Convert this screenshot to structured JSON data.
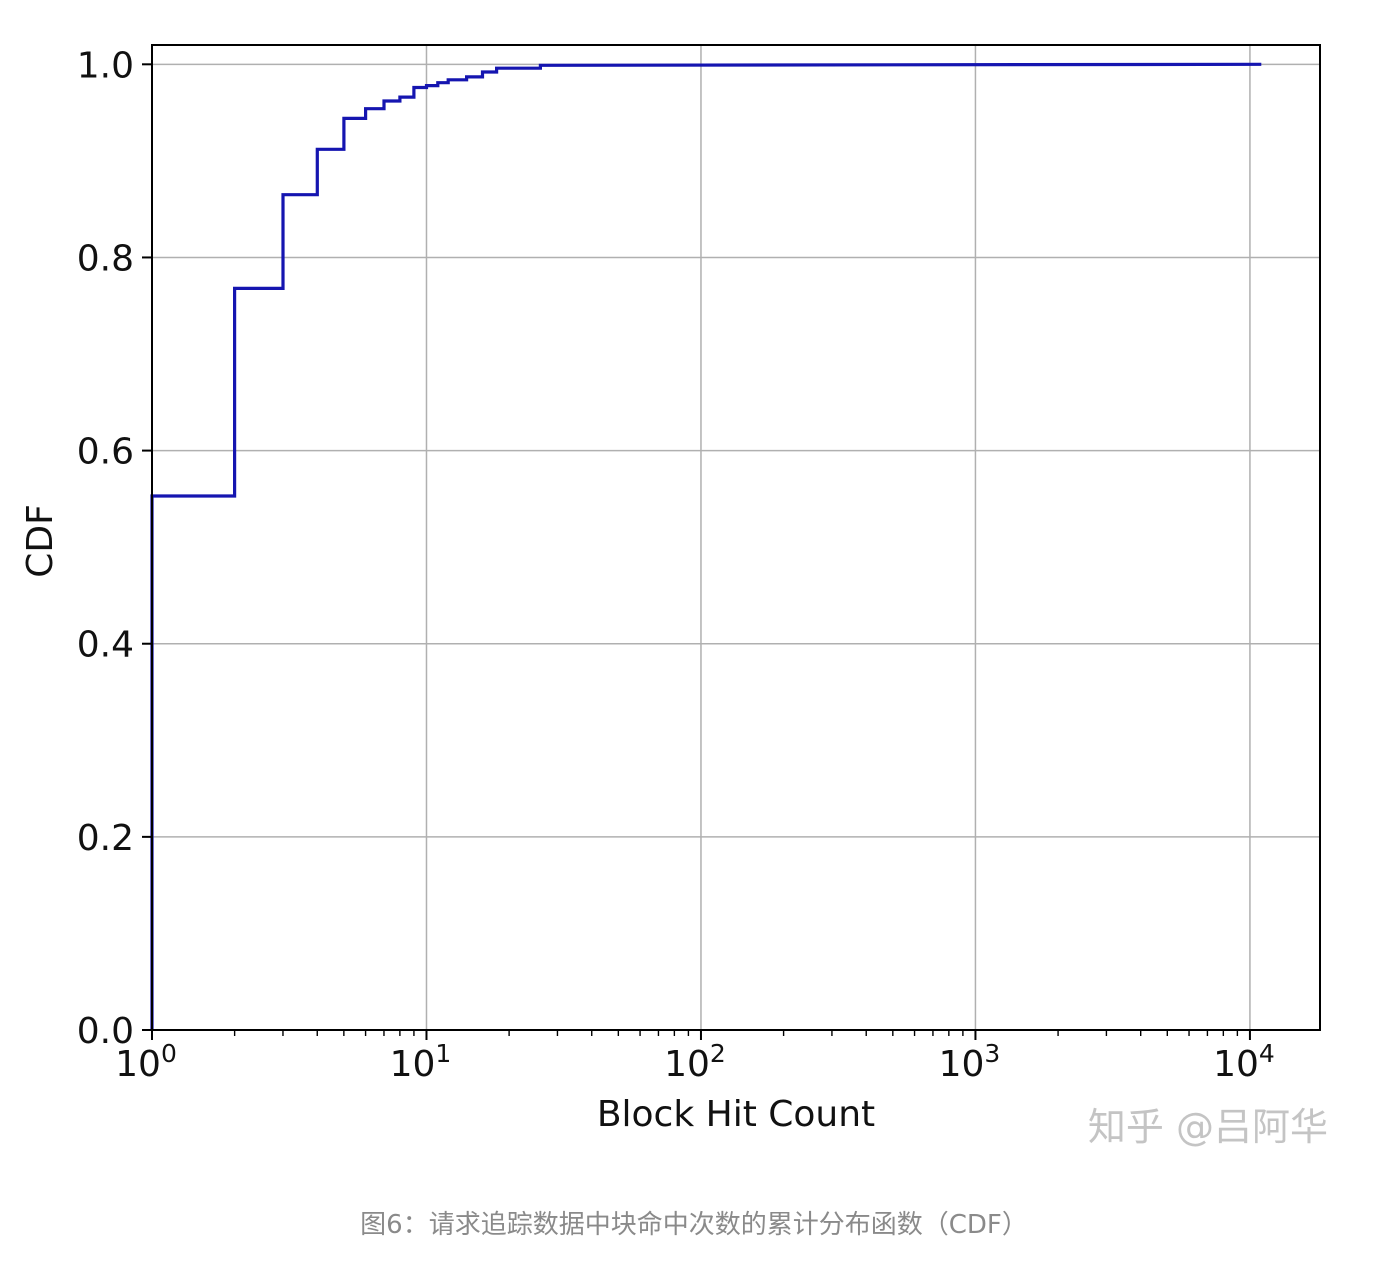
{
  "chart_data": {
    "type": "line",
    "step": true,
    "xscale": "log",
    "xlabel": "Block Hit Count",
    "ylabel": "CDF",
    "xlim": [
      1,
      18000
    ],
    "ylim": [
      0,
      1.02
    ],
    "grid": true,
    "line_color": "#1515b0",
    "xticks": [
      {
        "value": 1,
        "label": "10",
        "exp": "0"
      },
      {
        "value": 10,
        "label": "10",
        "exp": "1"
      },
      {
        "value": 100,
        "label": "10",
        "exp": "2"
      },
      {
        "value": 1000,
        "label": "10",
        "exp": "3"
      },
      {
        "value": 10000,
        "label": "10",
        "exp": "4"
      }
    ],
    "yticks": [
      {
        "value": 0.0,
        "label": "0.0"
      },
      {
        "value": 0.2,
        "label": "0.2"
      },
      {
        "value": 0.4,
        "label": "0.4"
      },
      {
        "value": 0.6,
        "label": "0.6"
      },
      {
        "value": 0.8,
        "label": "0.8"
      },
      {
        "value": 1.0,
        "label": "1.0"
      }
    ],
    "series": [
      {
        "points": [
          [
            1,
            0.0
          ],
          [
            1,
            0.553
          ],
          [
            2,
            0.553
          ],
          [
            2,
            0.768
          ],
          [
            3,
            0.768
          ],
          [
            3,
            0.865
          ],
          [
            4,
            0.865
          ],
          [
            4,
            0.912
          ],
          [
            5,
            0.912
          ],
          [
            5,
            0.944
          ],
          [
            6,
            0.944
          ],
          [
            6,
            0.954
          ],
          [
            7,
            0.954
          ],
          [
            7,
            0.962
          ],
          [
            8,
            0.962
          ],
          [
            8,
            0.966
          ],
          [
            9,
            0.966
          ],
          [
            9,
            0.976
          ],
          [
            10,
            0.976
          ],
          [
            10,
            0.978
          ],
          [
            11,
            0.978
          ],
          [
            11,
            0.981
          ],
          [
            12,
            0.981
          ],
          [
            12,
            0.984
          ],
          [
            14,
            0.984
          ],
          [
            14,
            0.987
          ],
          [
            16,
            0.987
          ],
          [
            16,
            0.992
          ],
          [
            18,
            0.992
          ],
          [
            18,
            0.996
          ],
          [
            26,
            0.996
          ],
          [
            26,
            0.999
          ],
          [
            11000,
            1.0
          ]
        ]
      }
    ]
  },
  "watermark": "知乎 @吕阿华",
  "caption": "图6：请求追踪数据中块命中次数的累计分布函数（CDF）"
}
